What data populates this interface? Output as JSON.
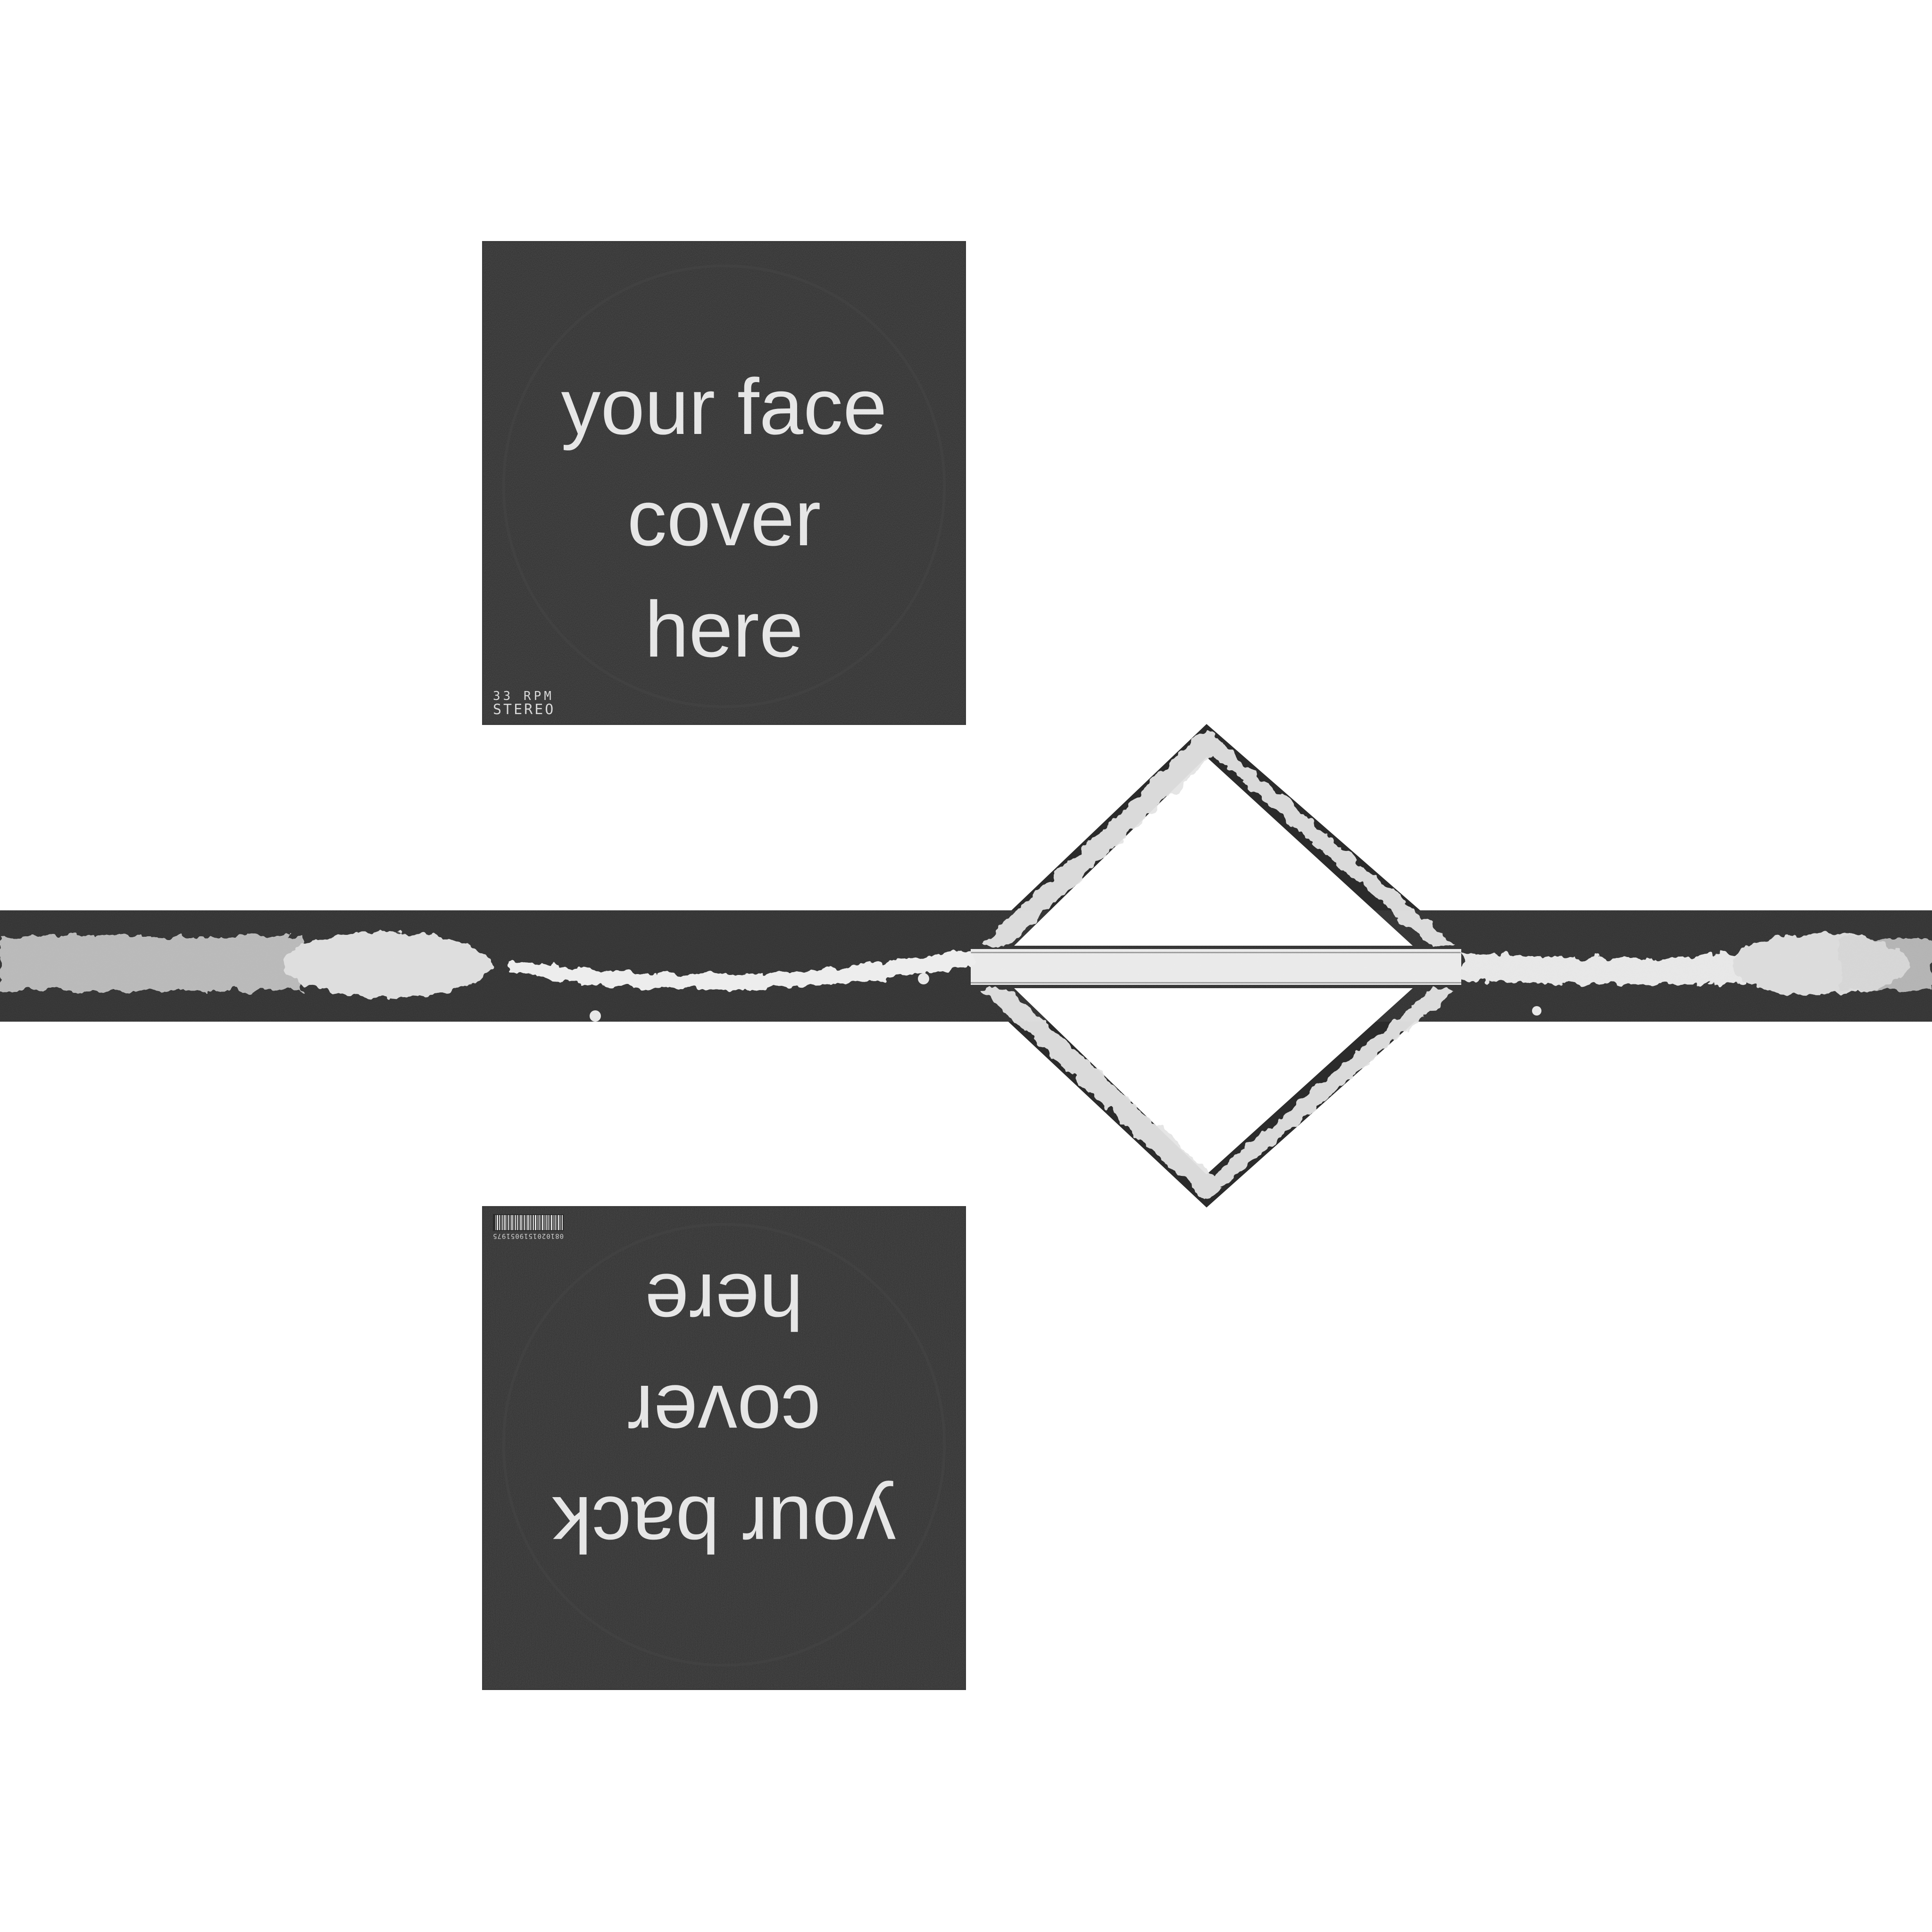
{
  "front_cover": {
    "lines": [
      "your face",
      "cover",
      "here"
    ],
    "speed": "33 RPM",
    "audio": "STEREO"
  },
  "back_cover": {
    "lines": [
      "your back",
      "cover",
      "here"
    ],
    "barcode_number": "0810201519051975"
  },
  "colors": {
    "background": "#ffffff",
    "cover": "#2a2a2a",
    "spine": "#2b2b2b",
    "paint": "#e8e8e8",
    "text": "#e6e6e6"
  }
}
